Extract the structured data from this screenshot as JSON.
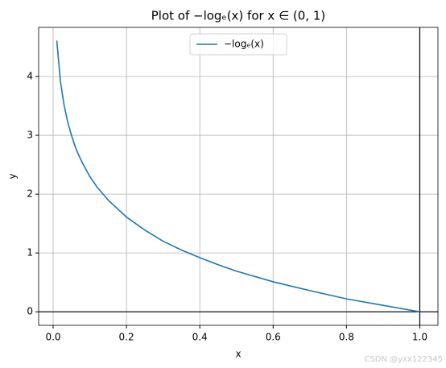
{
  "chart_data": {
    "type": "line",
    "title": "Plot of −logₑ(x) for x ∈ (0, 1)",
    "x_label": "x",
    "y_label": "y",
    "x": [
      0.01,
      0.02,
      0.03,
      0.04,
      0.05,
      0.06,
      0.07,
      0.08,
      0.1,
      0.12,
      0.15,
      0.2,
      0.25,
      0.3,
      0.35,
      0.4,
      0.45,
      0.5,
      0.6,
      0.7,
      0.8,
      0.9,
      1.0
    ],
    "series": [
      {
        "name": "−logₑ(x)",
        "color": "#1f77b4",
        "values": [
          4.61,
          3.91,
          3.51,
          3.22,
          3.0,
          2.81,
          2.66,
          2.53,
          2.3,
          2.12,
          1.9,
          1.61,
          1.39,
          1.2,
          1.05,
          0.92,
          0.8,
          0.69,
          0.51,
          0.36,
          0.22,
          0.11,
          0
        ]
      }
    ],
    "xlim": [
      -0.0395,
      1.0495
    ],
    "ylim": [
      -0.23,
      4.835
    ],
    "xticks": [
      {
        "value": 0,
        "label": "0.0"
      },
      0.2,
      0.4,
      0.6,
      0.8,
      {
        "value": 1,
        "label": "1.0"
      }
    ],
    "yticks": [
      0,
      1,
      2,
      3,
      4
    ],
    "grid": true,
    "legend": "upper center",
    "axhline": 0,
    "axvline": 1,
    "watermark": "CSDN @yxx122345"
  }
}
